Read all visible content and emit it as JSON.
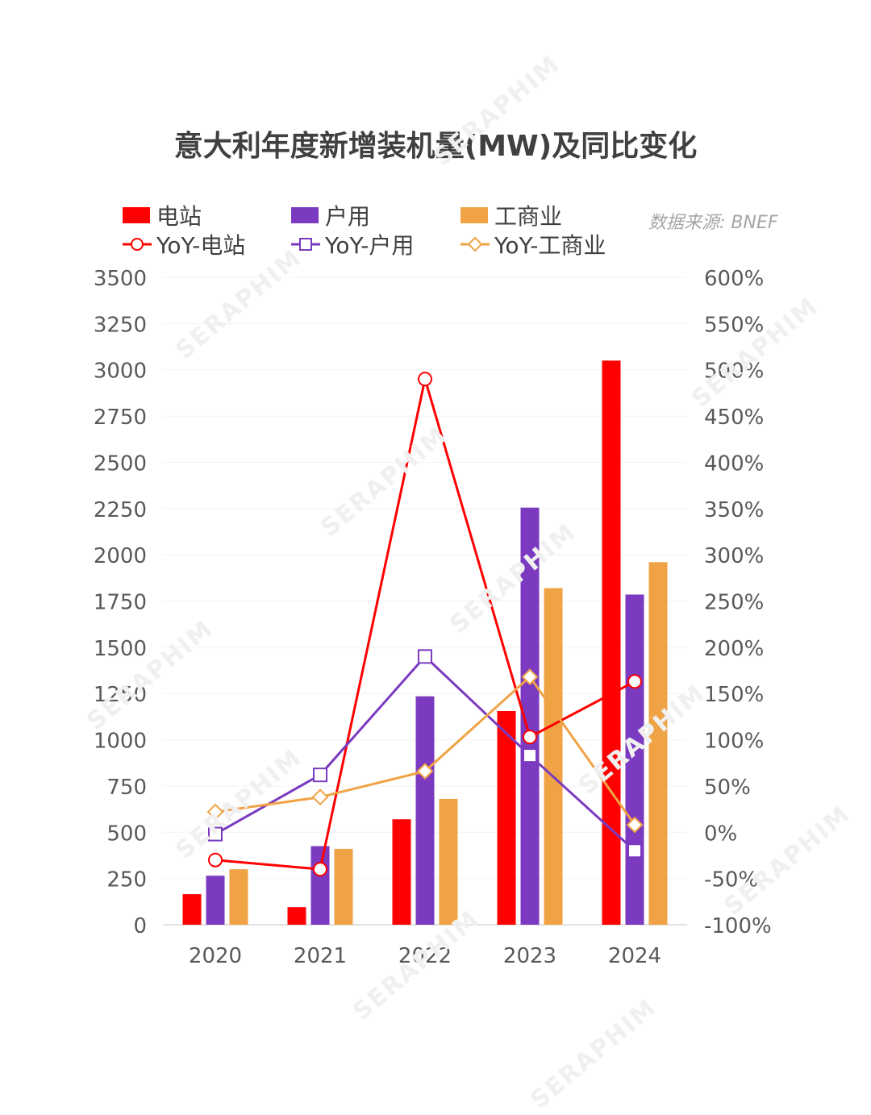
{
  "chart_data": {
    "type": "bar",
    "title": "意大利年度新增装机量(MW)及同比变化",
    "source": "数据来源: BNEF",
    "categories": [
      "2020",
      "2021",
      "2022",
      "2023",
      "2024"
    ],
    "y_left": {
      "min": 0,
      "max": 3500,
      "step": 250
    },
    "y_right": {
      "min": -100,
      "max": 600,
      "step": 50,
      "unit": "%"
    },
    "bar_series": [
      {
        "name": "电站",
        "color": "#ff0000",
        "values": [
          165,
          95,
          570,
          1155,
          3050
        ]
      },
      {
        "name": "户用",
        "color": "#7b3ac0",
        "values": [
          265,
          425,
          1235,
          2255,
          1785
        ]
      },
      {
        "name": "工商业",
        "color": "#f0a345",
        "values": [
          300,
          410,
          680,
          1820,
          1960
        ]
      }
    ],
    "line_series": [
      {
        "name": "YoY-电站",
        "color": "#ff0000",
        "marker": "circle",
        "values": [
          -30,
          -40,
          490,
          103,
          163
        ]
      },
      {
        "name": "YoY-户用",
        "color": "#7b3ac0",
        "marker": "square",
        "values": [
          -2,
          62,
          190,
          83,
          -20
        ]
      },
      {
        "name": "YoY-工商业",
        "color": "#f0a345",
        "marker": "diamond",
        "values": [
          22,
          38,
          66,
          168,
          8
        ]
      }
    ],
    "grid": true,
    "legend_position": "top-left"
  },
  "watermark": "SERAPHIM"
}
